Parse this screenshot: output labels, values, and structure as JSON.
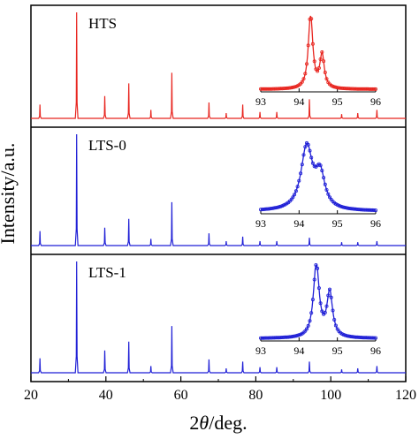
{
  "chart_data": {
    "type": "line",
    "xlabel_prefix": "2",
    "xlabel_symbol": "θ",
    "xlabel_suffix": "/deg.",
    "ylabel": "Intensity/a.u.",
    "xlim": [
      20,
      120
    ],
    "xticks": [
      "20",
      "40",
      "60",
      "80",
      "100",
      "120"
    ],
    "panels": [
      {
        "label": "HTS",
        "color": "#e8251f",
        "peaks": [
          [
            22.4,
            0.13
          ],
          [
            32.2,
            1.0
          ],
          [
            39.7,
            0.21
          ],
          [
            46.1,
            0.33
          ],
          [
            52.0,
            0.08
          ],
          [
            57.6,
            0.43
          ],
          [
            67.5,
            0.15
          ],
          [
            72.1,
            0.05
          ],
          [
            76.5,
            0.13
          ],
          [
            81.1,
            0.06
          ],
          [
            85.6,
            0.06
          ],
          [
            94.3,
            0.18
          ],
          [
            102.9,
            0.04
          ],
          [
            107.2,
            0.05
          ],
          [
            112.3,
            0.08
          ]
        ],
        "inset": {
          "xticks": [
            "93",
            "94",
            "95",
            "96"
          ],
          "xlim": [
            93,
            96
          ],
          "peaks": [
            [
              94.3,
              1.0,
              0.07
            ],
            [
              94.6,
              0.45,
              0.07
            ]
          ]
        }
      },
      {
        "label": "LTS-0",
        "color": "#1f1fd6",
        "peaks": [
          [
            22.4,
            0.13
          ],
          [
            32.2,
            1.0
          ],
          [
            39.7,
            0.16
          ],
          [
            46.1,
            0.24
          ],
          [
            52.0,
            0.06
          ],
          [
            57.6,
            0.39
          ],
          [
            67.5,
            0.11
          ],
          [
            72.1,
            0.04
          ],
          [
            76.5,
            0.08
          ],
          [
            81.1,
            0.04
          ],
          [
            85.6,
            0.04
          ],
          [
            94.3,
            0.07
          ],
          [
            102.9,
            0.03
          ],
          [
            107.2,
            0.03
          ],
          [
            112.3,
            0.04
          ]
        ],
        "inset": {
          "xticks": [
            "93",
            "94",
            "95",
            "96"
          ],
          "xlim": [
            93,
            96
          ],
          "peaks": [
            [
              94.2,
              0.85,
              0.18
            ],
            [
              94.55,
              0.45,
              0.15
            ]
          ]
        }
      },
      {
        "label": "LTS-1",
        "color": "#1f1fd6",
        "peaks": [
          [
            22.4,
            0.13
          ],
          [
            32.2,
            1.0
          ],
          [
            39.7,
            0.2
          ],
          [
            46.1,
            0.28
          ],
          [
            52.0,
            0.06
          ],
          [
            57.6,
            0.42
          ],
          [
            67.5,
            0.12
          ],
          [
            72.1,
            0.04
          ],
          [
            76.5,
            0.1
          ],
          [
            81.1,
            0.05
          ],
          [
            85.6,
            0.05
          ],
          [
            94.3,
            0.1
          ],
          [
            102.9,
            0.03
          ],
          [
            107.2,
            0.04
          ],
          [
            112.3,
            0.06
          ]
        ],
        "inset": {
          "xticks": [
            "93",
            "94",
            "95",
            "96"
          ],
          "xlim": [
            93,
            96
          ],
          "peaks": [
            [
              94.45,
              1.0,
              0.09
            ],
            [
              94.8,
              0.6,
              0.09
            ]
          ]
        }
      }
    ]
  }
}
